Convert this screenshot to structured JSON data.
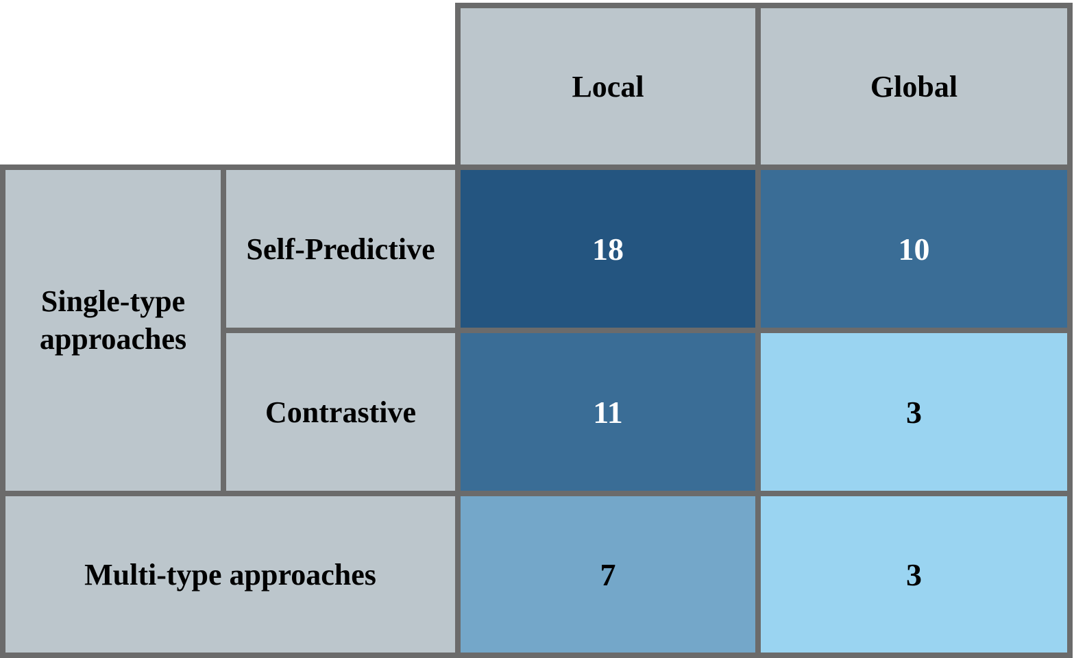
{
  "chart_data": {
    "type": "heatmap",
    "title": "",
    "columns": [
      "Local",
      "Global"
    ],
    "row_groups": [
      {
        "label": "Single-type\napproaches",
        "rows": [
          "Self-Predictive",
          "Contrastive"
        ]
      },
      {
        "label": "Multi-type approaches",
        "rows": [
          "Multi-type approaches"
        ]
      }
    ],
    "values": [
      [
        18,
        10
      ],
      [
        11,
        3
      ],
      [
        7,
        3
      ]
    ],
    "colors": {
      "header_bg": "#bcc6cc",
      "border": "#6b6b6b",
      "scale": [
        {
          "min": 15,
          "color": "#245580",
          "text": "#ffffff"
        },
        {
          "min": 10,
          "color": "#3a6d96",
          "text": "#ffffff"
        },
        {
          "min": 5,
          "color": "#74a7c9",
          "text": "#000000"
        },
        {
          "min": 0,
          "color": "#9ad4f1",
          "text": "#000000"
        }
      ]
    }
  }
}
